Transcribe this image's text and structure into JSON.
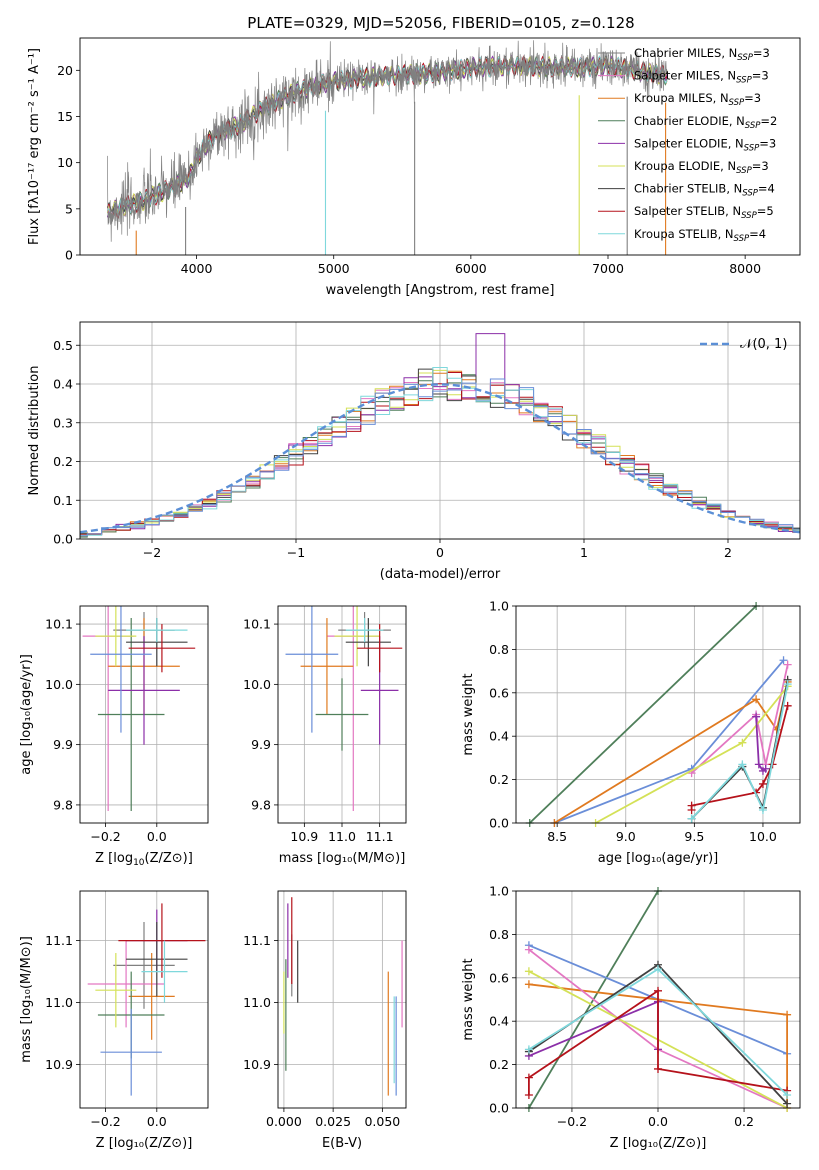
{
  "title": "PLATE=0329, MJD=52056, FIBERID=0105, z=0.128",
  "colors": [
    "#808080",
    "#e377c2",
    "#e07a20",
    "#4f7f5a",
    "#8b2fa8",
    "#d4e157",
    "#404040",
    "#b5121b",
    "#7fd8dc",
    "#6a8ed8"
  ],
  "chart_data": [
    {
      "id": "spectrum",
      "type": "line",
      "xlabel": "wavelength [Angstrom, rest frame]",
      "ylabel": "Flux [fλ10⁻¹⁷ erg cm⁻² s⁻¹ A⁻¹]",
      "xlim": [
        3150,
        8400
      ],
      "ylim": [
        0,
        23.5
      ],
      "xticks": [
        "4000",
        "5000",
        "6000",
        "7000",
        "8000"
      ],
      "xtick_values": [
        4000,
        5000,
        6000,
        7000,
        8000
      ],
      "yticks": [
        "0",
        "5",
        "10",
        "15",
        "20"
      ],
      "ytick_values": [
        0,
        5,
        10,
        15,
        20
      ],
      "legend_position": "right",
      "series": [
        {
          "name": "Chabrier MILES, Nₛₛₚ=3",
          "label_main": "Chabrier MILES, N",
          "label_sub": "SSP",
          "label_tail": "=3",
          "color": "#808080"
        },
        {
          "name": "Salpeter MILES, Nₛₛₚ=3",
          "label_main": "Salpeter MILES, N",
          "label_sub": "SSP",
          "label_tail": "=3",
          "color": "#e377c2"
        },
        {
          "name": "Kroupa MILES, Nₛₛₚ=3",
          "label_main": "Kroupa MILES, N",
          "label_sub": "SSP",
          "label_tail": "=3",
          "color": "#e07a20"
        },
        {
          "name": "Chabrier ELODIE, Nₛₛₚ=2",
          "label_main": "Chabrier ELODIE, N",
          "label_sub": "SSP",
          "label_tail": "=2",
          "color": "#4f7f5a"
        },
        {
          "name": "Salpeter ELODIE, Nₛₛₚ=3",
          "label_main": "Salpeter ELODIE, N",
          "label_sub": "SSP",
          "label_tail": "=3",
          "color": "#8b2fa8"
        },
        {
          "name": "Kroupa ELODIE, Nₛₛₚ=3",
          "label_main": "Kroupa ELODIE, N",
          "label_sub": "SSP",
          "label_tail": "=3",
          "color": "#d4e157"
        },
        {
          "name": "Chabrier STELIB, Nₛₛₚ=4",
          "label_main": "Chabrier STELIB, N",
          "label_sub": "SSP",
          "label_tail": "=4",
          "color": "#404040"
        },
        {
          "name": "Salpeter STELIB, Nₛₛₚ=5",
          "label_main": "Salpeter STELIB, N",
          "label_sub": "SSP",
          "label_tail": "=5",
          "color": "#b5121b"
        },
        {
          "name": "Kroupa STELIB, Nₛₛₚ=4",
          "label_main": "Kroupa STELIB, N",
          "label_sub": "SSP",
          "label_tail": "=4",
          "color": "#7fd8dc"
        }
      ],
      "continuum": {
        "x": [
          3350,
          3450,
          3600,
          3700,
          3850,
          3950,
          4000,
          4100,
          4200,
          4300,
          4400,
          4500,
          4700,
          4900,
          5000,
          5200,
          5500,
          5800,
          6000,
          6300,
          6500,
          6800,
          7000,
          7200,
          7350,
          7420
        ],
        "y": [
          4.5,
          5.2,
          5.8,
          6.5,
          7.5,
          8.5,
          10.5,
          12.5,
          13.5,
          14,
          15,
          16,
          17.5,
          18.5,
          18.8,
          19.2,
          19.5,
          19.8,
          20.3,
          20.5,
          20.4,
          20.3,
          20.5,
          20.0,
          19.6,
          19.5
        ]
      },
      "dips_x": [
        3560,
        3920,
        4940,
        5590,
        6790,
        7140,
        7420
      ]
    },
    {
      "id": "residuals",
      "type": "histogram",
      "xlabel": "(data-model)/error",
      "ylabel": "Normed distribution",
      "xlim": [
        -2.5,
        2.5
      ],
      "ylim": [
        0,
        0.56
      ],
      "xticks": [
        "−2",
        "−1",
        "0",
        "1",
        "2"
      ],
      "xtick_values": [
        -2,
        -1,
        0,
        1,
        2
      ],
      "yticks": [
        "0.0",
        "0.1",
        "0.2",
        "0.3",
        "0.4",
        "0.5"
      ],
      "ytick_values": [
        0,
        0.1,
        0.2,
        0.3,
        0.4,
        0.5
      ],
      "legend": "𝒩(0, 1)",
      "legend_position": "top-right",
      "bin_width": 0.1,
      "reference_curve": {
        "mean": 0,
        "std": 1
      }
    },
    {
      "id": "age-vs-Z",
      "type": "scatter",
      "xlabel_main": "Z [log",
      "xlabel_rest": "10",
      "xlabel_tail": "(Z/Z⊙)]",
      "ylabel": "age  [log₁₀(age/yr)]",
      "xlim": [
        -0.3,
        0.2
      ],
      "ylim": [
        9.77,
        10.13
      ],
      "xticks": [
        "−0.2",
        "0.0"
      ],
      "xtick_values": [
        -0.2,
        0.0
      ],
      "yticks": [
        "9.8",
        "9.9",
        "10.0",
        "10.1"
      ],
      "ytick_values": [
        9.8,
        9.9,
        10.0,
        10.1
      ],
      "points": [
        {
          "x": -0.05,
          "y": 10.09,
          "xerr": 0.12,
          "yerr": 0.03,
          "color": "#808080"
        },
        {
          "x": -0.19,
          "y": 10.08,
          "xerr": 0.1,
          "yerr": 0.29,
          "color": "#e377c2"
        },
        {
          "x": -0.05,
          "y": 10.03,
          "xerr": 0.14,
          "yerr": 0.08,
          "color": "#e07a20"
        },
        {
          "x": -0.1,
          "y": 9.95,
          "xerr": 0.13,
          "yerr": 0.16,
          "color": "#4f7f5a"
        },
        {
          "x": -0.05,
          "y": 9.99,
          "xerr": 0.14,
          "yerr": 0.09,
          "color": "#8b2fa8"
        },
        {
          "x": -0.16,
          "y": 10.08,
          "xerr": 0.08,
          "yerr": 0.05,
          "color": "#d4e157"
        },
        {
          "x": 0.0,
          "y": 10.07,
          "xerr": 0.12,
          "yerr": 0.04,
          "color": "#404040"
        },
        {
          "x": 0.02,
          "y": 10.06,
          "xerr": 0.13,
          "yerr": 0.04,
          "color": "#b5121b"
        },
        {
          "x": 0.0,
          "y": 10.09,
          "xerr": 0.12,
          "yerr": 0.02,
          "color": "#7fd8dc"
        },
        {
          "x": -0.14,
          "y": 10.05,
          "xerr": 0.12,
          "yerr": 0.13,
          "color": "#6a8ed8"
        }
      ]
    },
    {
      "id": "age-vs-mass",
      "type": "scatter",
      "xlabel": "mass [log₁₀(M/M⊙)]",
      "xlim": [
        10.83,
        11.17
      ],
      "ylim": [
        9.77,
        10.13
      ],
      "xticks": [
        "10.9",
        "11.0",
        "11.1"
      ],
      "xtick_values": [
        10.9,
        11.0,
        11.1
      ],
      "yticks": [
        "9.8",
        "9.9",
        "10.0",
        "10.1"
      ],
      "ytick_values": [
        9.8,
        9.9,
        10.0,
        10.1
      ],
      "points": [
        {
          "x": 11.06,
          "y": 10.09,
          "xerr": 0.07,
          "yerr": 0.03,
          "color": "#808080"
        },
        {
          "x": 11.03,
          "y": 10.08,
          "xerr": 0.07,
          "yerr": 0.29,
          "color": "#e377c2"
        },
        {
          "x": 10.96,
          "y": 10.03,
          "xerr": 0.07,
          "yerr": 0.08,
          "color": "#e07a20"
        },
        {
          "x": 11.0,
          "y": 9.95,
          "xerr": 0.07,
          "yerr": 0.06,
          "color": "#4f7f5a"
        },
        {
          "x": 11.1,
          "y": 9.99,
          "xerr": 0.05,
          "yerr": 0.09,
          "color": "#8b2fa8"
        },
        {
          "x": 11.04,
          "y": 10.08,
          "xerr": 0.06,
          "yerr": 0.05,
          "color": "#d4e157"
        },
        {
          "x": 11.07,
          "y": 10.07,
          "xerr": 0.06,
          "yerr": 0.04,
          "color": "#404040"
        },
        {
          "x": 11.1,
          "y": 10.06,
          "xerr": 0.06,
          "yerr": 0.04,
          "color": "#b5121b"
        },
        {
          "x": 11.06,
          "y": 10.09,
          "xerr": 0.05,
          "yerr": 0.02,
          "color": "#7fd8dc"
        },
        {
          "x": 10.92,
          "y": 10.05,
          "xerr": 0.07,
          "yerr": 0.13,
          "color": "#6a8ed8"
        }
      ]
    },
    {
      "id": "weight-vs-age",
      "type": "line",
      "xlabel": "age  [log₁₀(age/yr)]",
      "ylabel": "mass weight",
      "xlim": [
        8.2,
        10.27
      ],
      "ylim": [
        0,
        1.0
      ],
      "xticks": [
        "8.5",
        "9.0",
        "9.5",
        "10.0"
      ],
      "xtick_values": [
        8.5,
        9.0,
        9.5,
        10.0
      ],
      "yticks": [
        "0.0",
        "0.2",
        "0.4",
        "0.6",
        "0.8",
        "1.0"
      ],
      "ytick_values": [
        0,
        0.2,
        0.4,
        0.6,
        0.8,
        1.0
      ],
      "series": [
        {
          "color": "#4f7f5a",
          "x": [
            8.3,
            9.95
          ],
          "y": [
            0.0,
            1.0
          ]
        },
        {
          "color": "#6a8ed8",
          "x": [
            8.48,
            9.48,
            10.15
          ],
          "y": [
            0.0,
            0.25,
            0.75
          ]
        },
        {
          "color": "#e07a20",
          "x": [
            8.48,
            9.95,
            10.1,
            10.18
          ],
          "y": [
            0.0,
            0.57,
            0.43,
            0.65
          ]
        },
        {
          "color": "#e377c2",
          "x": [
            9.48,
            9.95,
            10.02,
            10.18
          ],
          "y": [
            0.23,
            0.5,
            0.27,
            0.73
          ]
        },
        {
          "color": "#d4e157",
          "x": [
            8.78,
            9.85,
            10.18
          ],
          "y": [
            0.0,
            0.37,
            0.63
          ]
        },
        {
          "color": "#8b2fa8",
          "x": [
            9.95,
            9.97,
            10.0,
            10.02
          ],
          "y": [
            0.49,
            0.27,
            0.24,
            0.25
          ]
        },
        {
          "color": "#b5121b",
          "x": [
            9.48,
            9.48,
            9.95,
            10.0,
            10.07,
            10.18
          ],
          "y": [
            0.06,
            0.08,
            0.14,
            0.18,
            0.27,
            0.54
          ]
        },
        {
          "color": "#404040",
          "x": [
            9.48,
            9.85,
            10.0,
            10.18
          ],
          "y": [
            0.02,
            0.26,
            0.07,
            0.66
          ]
        },
        {
          "color": "#7fd8dc",
          "x": [
            9.48,
            9.85,
            10.0,
            10.18
          ],
          "y": [
            0.02,
            0.27,
            0.06,
            0.64
          ]
        }
      ]
    },
    {
      "id": "mass-vs-Z",
      "type": "scatter",
      "xlabel": "Z [log₁₀(Z/Z⊙)]",
      "ylabel": "mass [log₁₀(M/M⊙)]",
      "xlim": [
        -0.3,
        0.2
      ],
      "ylim": [
        10.83,
        11.18
      ],
      "xticks": [
        "−0.2",
        "0.0"
      ],
      "xtick_values": [
        -0.2,
        0.0
      ],
      "yticks": [
        "10.9",
        "11.0",
        "11.1"
      ],
      "ytick_values": [
        10.9,
        11.0,
        11.1
      ],
      "points": [
        {
          "x": -0.05,
          "y": 11.06,
          "xerr": 0.12,
          "yerr": 0.07,
          "color": "#808080"
        },
        {
          "x": -0.12,
          "y": 11.03,
          "xerr": 0.15,
          "yerr": 0.07,
          "color": "#e377c2"
        },
        {
          "x": -0.02,
          "y": 11.01,
          "xerr": 0.09,
          "yerr": 0.07,
          "color": "#e07a20"
        },
        {
          "x": -0.1,
          "y": 10.98,
          "xerr": 0.13,
          "yerr": 0.07,
          "color": "#4f7f5a"
        },
        {
          "x": 0.0,
          "y": 11.1,
          "xerr": 0.12,
          "yerr": 0.05,
          "color": "#8b2fa8"
        },
        {
          "x": -0.16,
          "y": 11.02,
          "xerr": 0.08,
          "yerr": 0.06,
          "color": "#d4e157"
        },
        {
          "x": 0.0,
          "y": 11.07,
          "xerr": 0.12,
          "yerr": 0.06,
          "color": "#404040"
        },
        {
          "x": 0.02,
          "y": 11.1,
          "xerr": 0.17,
          "yerr": 0.06,
          "color": "#b5121b"
        },
        {
          "x": 0.03,
          "y": 11.05,
          "xerr": 0.09,
          "yerr": 0.05,
          "color": "#7fd8dc"
        },
        {
          "x": -0.1,
          "y": 10.92,
          "xerr": 0.12,
          "yerr": 0.07,
          "color": "#6a8ed8"
        }
      ]
    },
    {
      "id": "mass-vs-ebv",
      "type": "scatter",
      "xlabel": "E(B-V)",
      "xlim": [
        -0.003,
        0.062
      ],
      "ylim": [
        10.83,
        11.18
      ],
      "xticks": [
        "0.000",
        "0.025",
        "0.050"
      ],
      "xtick_values": [
        0.0,
        0.025,
        0.05
      ],
      "yticks": [
        "10.9",
        "11.0",
        "11.1"
      ],
      "ytick_values": [
        10.9,
        11.0,
        11.1
      ],
      "points": [
        {
          "x": 0.004,
          "y": 11.06,
          "yerr": 0.05,
          "color": "#808080"
        },
        {
          "x": 0.06,
          "y": 11.03,
          "yerr": 0.07,
          "color": "#e377c2"
        },
        {
          "x": 0.053,
          "y": 10.95,
          "yerr": 0.1,
          "color": "#e07a20"
        },
        {
          "x": 0.001,
          "y": 10.98,
          "yerr": 0.09,
          "color": "#4f7f5a"
        },
        {
          "x": 0.002,
          "y": 11.1,
          "yerr": 0.06,
          "color": "#8b2fa8"
        },
        {
          "x": 0.0,
          "y": 11.0,
          "yerr": 0.05,
          "color": "#d4e157"
        },
        {
          "x": 0.007,
          "y": 11.05,
          "yerr": 0.05,
          "color": "#404040"
        },
        {
          "x": 0.004,
          "y": 11.1,
          "yerr": 0.07,
          "color": "#b5121b"
        },
        {
          "x": 0.056,
          "y": 10.94,
          "yerr": 0.07,
          "color": "#7fd8dc"
        },
        {
          "x": 0.057,
          "y": 10.93,
          "yerr": 0.08,
          "color": "#6a8ed8"
        }
      ]
    },
    {
      "id": "weight-vs-Z",
      "type": "line",
      "xlabel": "Z [log₁₀(Z/Z⊙)]",
      "ylabel": "mass weight",
      "xlim": [
        -0.33,
        0.33
      ],
      "ylim": [
        0,
        1.0
      ],
      "xticks": [
        "−0.2",
        "0.0",
        "0.2"
      ],
      "xtick_values": [
        -0.2,
        0.0,
        0.2
      ],
      "yticks": [
        "0.0",
        "0.2",
        "0.4",
        "0.6",
        "0.8",
        "1.0"
      ],
      "ytick_values": [
        0,
        0.2,
        0.4,
        0.6,
        0.8,
        1.0
      ],
      "series": [
        {
          "color": "#4f7f5a",
          "x": [
            -0.3,
            0.0
          ],
          "y": [
            0.0,
            1.0
          ]
        },
        {
          "color": "#6a8ed8",
          "x": [
            -0.3,
            0.0,
            0.3
          ],
          "y": [
            0.75,
            0.5,
            0.25
          ]
        },
        {
          "color": "#e07a20",
          "x": [
            -0.3,
            0.3,
            0.3
          ],
          "y": [
            0.57,
            0.43,
            0.0
          ]
        },
        {
          "color": "#e377c2",
          "x": [
            -0.3,
            0.0,
            0.3
          ],
          "y": [
            0.73,
            0.27,
            0.0
          ]
        },
        {
          "color": "#d4e157",
          "x": [
            -0.3,
            0.3
          ],
          "y": [
            0.63,
            0.0
          ]
        },
        {
          "color": "#8b2fa8",
          "x": [
            -0.3,
            0.0,
            0.0
          ],
          "y": [
            0.24,
            0.49,
            0.27
          ]
        },
        {
          "color": "#b5121b",
          "x": [
            -0.3,
            -0.3,
            0.0,
            0.0,
            0.3
          ],
          "y": [
            0.06,
            0.14,
            0.54,
            0.18,
            0.08
          ]
        },
        {
          "color": "#404040",
          "x": [
            -0.3,
            0.0,
            0.3
          ],
          "y": [
            0.26,
            0.66,
            0.02
          ]
        },
        {
          "color": "#7fd8dc",
          "x": [
            -0.3,
            0.0,
            0.3
          ],
          "y": [
            0.27,
            0.64,
            0.06
          ]
        }
      ]
    }
  ]
}
